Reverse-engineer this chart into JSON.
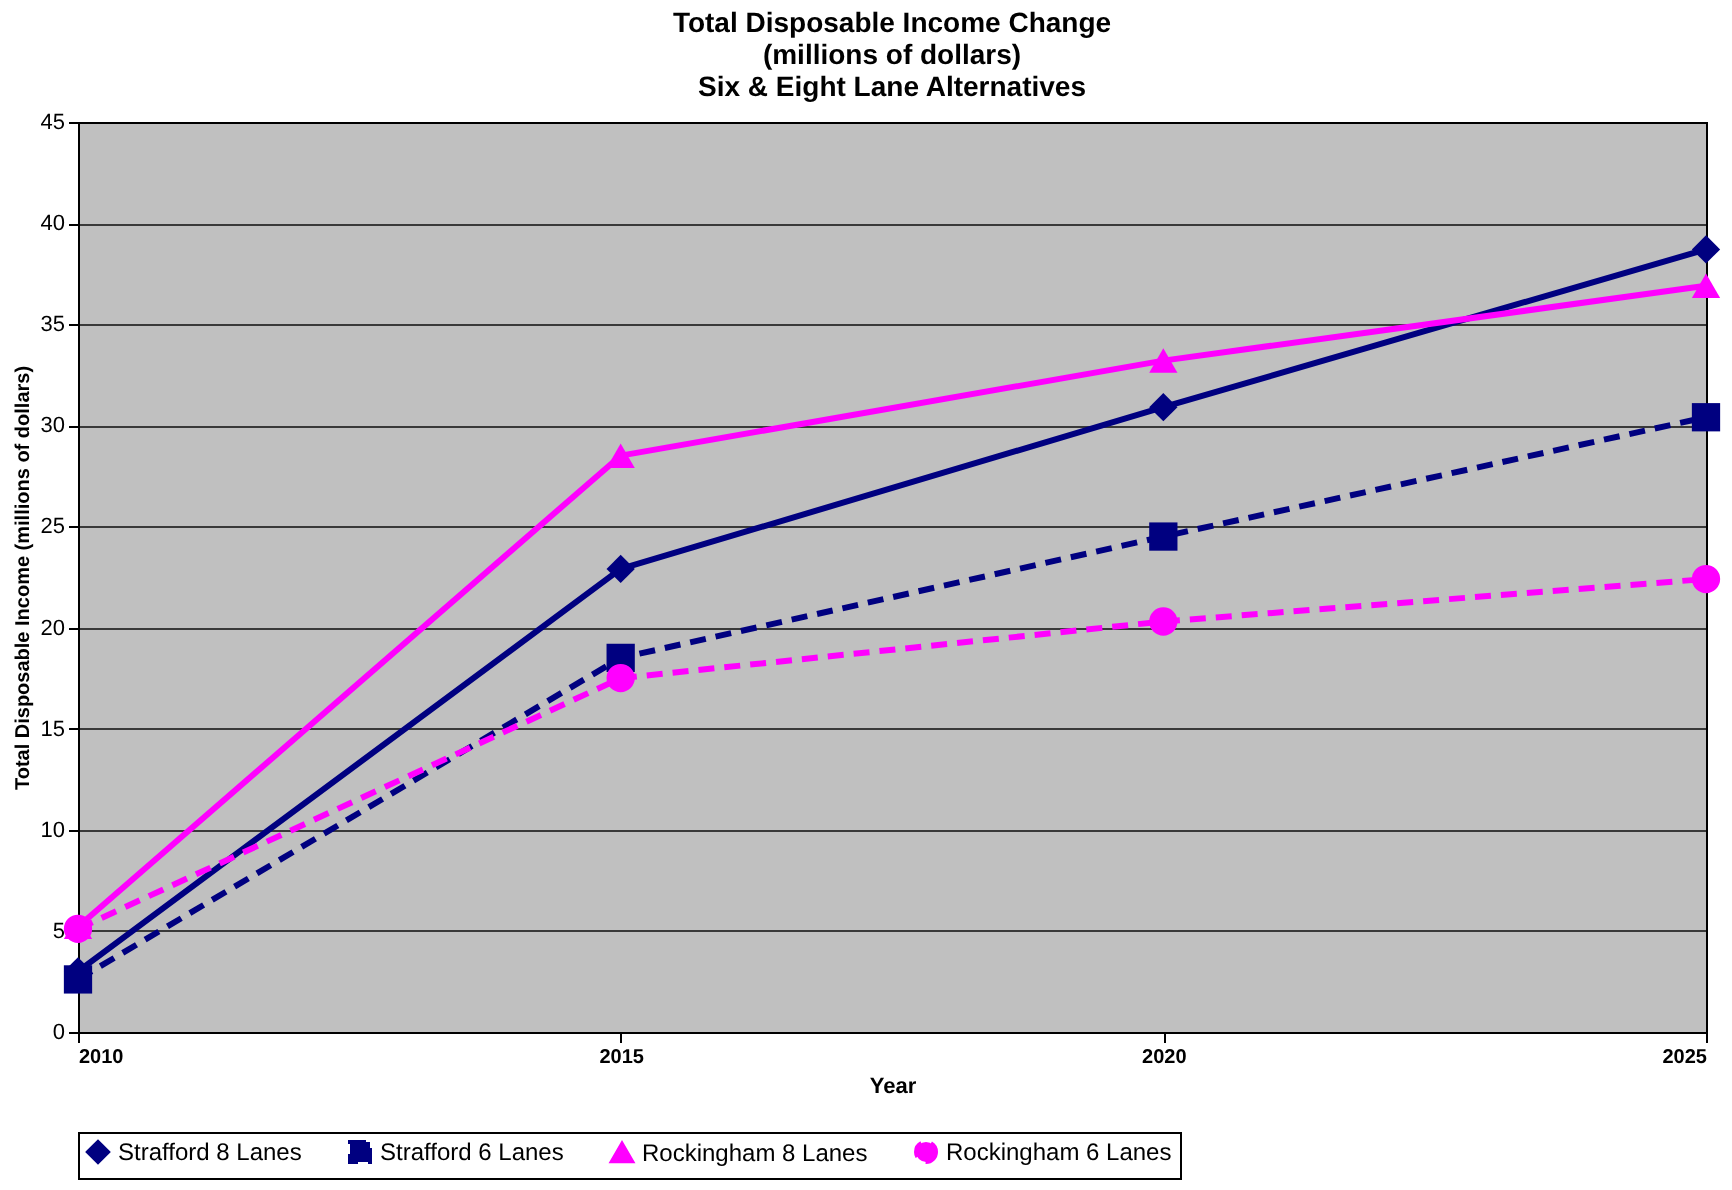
{
  "chart_data": {
    "type": "line",
    "title": "Total Disposable Income Change\n(millions of dollars)\nSix & Eight Lane Alternatives",
    "xlabel": "Year",
    "ylabel": "Total Disposable Income (millions of dollars)",
    "x": [
      2010,
      2015,
      2020,
      2025
    ],
    "xlim": [
      2010,
      2025
    ],
    "xticks": [
      2010,
      2015,
      2020,
      2025
    ],
    "ylim": [
      0,
      45
    ],
    "yticks": [
      0,
      5,
      10,
      15,
      20,
      25,
      30,
      35,
      40,
      45
    ],
    "grid": "y",
    "legend": "bottom",
    "series": [
      {
        "name": "Strafford 8 Lanes",
        "color": "#000080",
        "values": [
          3.0,
          22.9,
          30.9,
          38.7
        ],
        "marker": "diamond",
        "line_style": "solid"
      },
      {
        "name": "Strafford 6 Lanes",
        "color": "#000080",
        "values": [
          2.6,
          18.5,
          24.5,
          30.4
        ],
        "marker": "square",
        "line_style": "dashed"
      },
      {
        "name": "Rockingham 8 Lanes",
        "color": "#ff00ff",
        "values": [
          5.2,
          28.5,
          33.2,
          36.9
        ],
        "marker": "triangle",
        "line_style": "solid"
      },
      {
        "name": "Rockingham 6 Lanes",
        "color": "#ff00ff",
        "values": [
          5.1,
          17.5,
          20.3,
          22.4
        ],
        "marker": "circle",
        "line_style": "dashed"
      }
    ]
  }
}
